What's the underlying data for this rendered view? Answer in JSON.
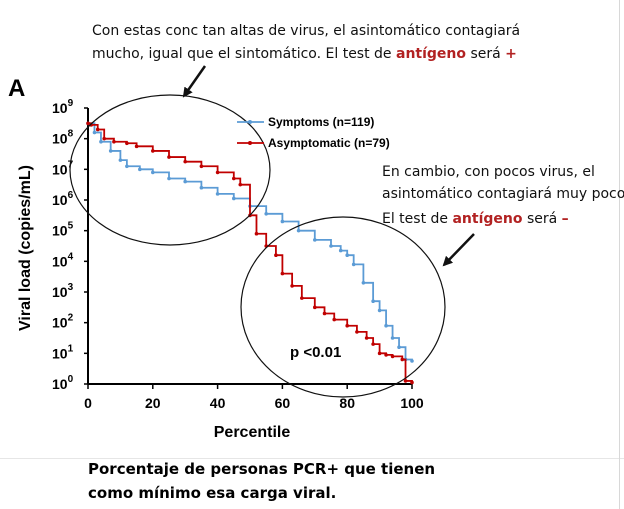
{
  "annotations": {
    "top": {
      "line1": "Con estas conc tan altas de  virus, el asintomático contagiará",
      "line2_pre": "mucho, igual que el sintomático. El test de ",
      "line2_red": "antígeno",
      "line2_mid": " será ",
      "line2_sign": "+"
    },
    "right": {
      "line1": "En cambio, con pocos virus, el",
      "line2": "asintomático contagiará muy poco.",
      "line3_pre": "El test de ",
      "line3_red": "antígeno",
      "line3_mid": " será ",
      "line3_sign": "–"
    },
    "caption": {
      "line1": "Porcentaje de personas PCR+ que tienen",
      "line2": "como mínimo esa carga viral."
    },
    "highlight_color": "#b22222"
  },
  "chart_data": {
    "type": "line",
    "panel_label": "A",
    "xlabel": "Percentile",
    "ylabel": "Viral load (copies/mL)",
    "xlim": [
      0,
      100
    ],
    "ylim_log10": [
      0,
      9
    ],
    "yscale": "log",
    "x_ticks": [
      "0",
      "20",
      "40",
      "60",
      "80",
      "100"
    ],
    "y_ticks": [
      {
        "base": "10",
        "exp": "0"
      },
      {
        "base": "10",
        "exp": "1"
      },
      {
        "base": "10",
        "exp": "2"
      },
      {
        "base": "10",
        "exp": "3"
      },
      {
        "base": "10",
        "exp": "4"
      },
      {
        "base": "10",
        "exp": "5"
      },
      {
        "base": "10",
        "exp": "6"
      },
      {
        "base": "10",
        "exp": "7"
      },
      {
        "base": "10",
        "exp": "8"
      },
      {
        "base": "10",
        "exp": "9"
      }
    ],
    "annotation": "p <0.01",
    "legend_position": "top-right",
    "series": [
      {
        "name": "Symptoms (n=119)",
        "color": "#5b9bd5",
        "x": [
          0,
          2,
          4,
          7,
          10,
          12,
          16,
          20,
          25,
          30,
          35,
          40,
          45,
          50,
          55,
          60,
          65,
          70,
          75,
          78,
          80,
          82,
          85,
          88,
          90,
          92,
          94,
          96,
          98,
          100
        ],
        "log10_y": [
          8.5,
          8.2,
          7.9,
          7.6,
          7.3,
          7.1,
          7.0,
          6.9,
          6.7,
          6.6,
          6.4,
          6.2,
          6.05,
          5.8,
          5.55,
          5.3,
          5.0,
          4.7,
          4.5,
          4.35,
          4.2,
          3.9,
          3.3,
          2.7,
          2.4,
          1.9,
          1.5,
          1.2,
          0.8,
          0.75
        ]
      },
      {
        "name": "Asymptomatic (n=79)",
        "color": "#c00000",
        "x": [
          0,
          1,
          3,
          5,
          8,
          12,
          15,
          20,
          25,
          30,
          35,
          40,
          45,
          47,
          50,
          52,
          55,
          58,
          60,
          63,
          66,
          70,
          73,
          76,
          80,
          83,
          86,
          88,
          90,
          92,
          94,
          97,
          98,
          100
        ],
        "log10_y": [
          8.5,
          8.45,
          8.3,
          8.0,
          7.9,
          7.85,
          7.75,
          7.6,
          7.4,
          7.25,
          7.1,
          6.9,
          6.7,
          6.5,
          5.5,
          4.9,
          4.5,
          4.2,
          3.6,
          3.2,
          2.8,
          2.5,
          2.3,
          2.1,
          1.9,
          1.7,
          1.5,
          1.3,
          1.0,
          0.95,
          0.9,
          0.8,
          0.1,
          0.05
        ]
      }
    ]
  }
}
